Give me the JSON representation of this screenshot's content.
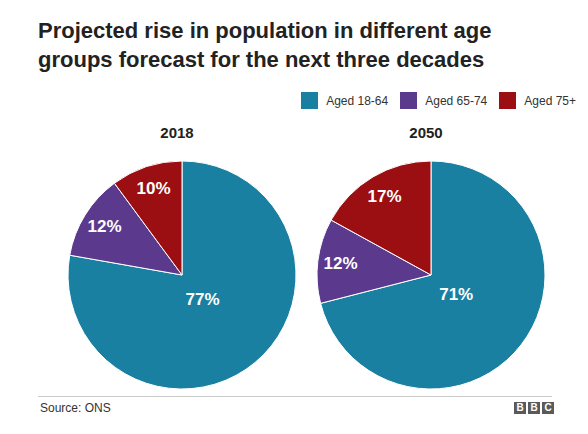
{
  "title": "Projected rise in population in different age groups forecast for the next three decades",
  "legend": "top-right",
  "source": "Source: ONS",
  "logo": "BBC",
  "chart_data": [
    {
      "type": "pie",
      "title": "2018",
      "categories": [
        "Aged 18-64",
        "Aged 65-74",
        "Aged 75+"
      ],
      "values": [
        77,
        12,
        10
      ],
      "value_labels": [
        "77%",
        "12%",
        "10%"
      ],
      "colors": [
        "#1a80a2",
        "#5b3a8e",
        "#9b0f12"
      ],
      "data_labels": true
    },
    {
      "type": "pie",
      "title": "2050",
      "categories": [
        "Aged 18-64",
        "Aged 65-74",
        "Aged 75+"
      ],
      "values": [
        71,
        12,
        17
      ],
      "value_labels": [
        "71%",
        "12%",
        "17%"
      ],
      "colors": [
        "#1a80a2",
        "#5b3a8e",
        "#9b0f12"
      ],
      "data_labels": true
    }
  ]
}
